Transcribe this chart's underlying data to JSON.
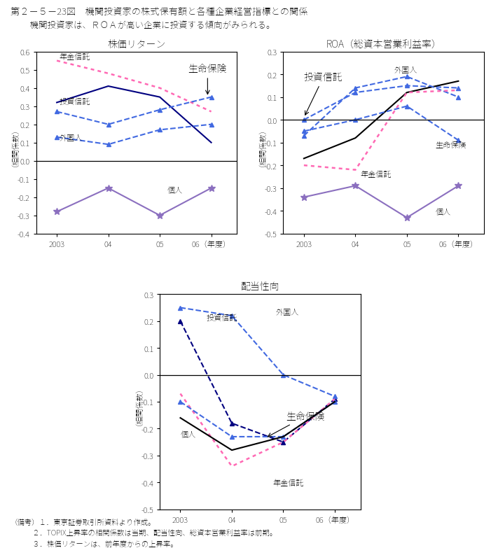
{
  "title": "第２－５－23図　機関投資家の株式保有額と各種企業経営指標との関係",
  "subtitle": "　機関投資家は、ＲＯＡが高い企業に投資する傾向がみられる。",
  "footnotes": [
    "（備考）１．東京証券取引所資料より作成。",
    "　　　２．TOPIX上昇率の相関係数は当期、配当性向、総資本営業利益率は前期。",
    "　　　３．株価リターンは、前年度からの上昇率。"
  ],
  "years": [
    0,
    1,
    2,
    3
  ],
  "xlabels": [
    "2003",
    "04",
    "05",
    "06（年度）"
  ],
  "chart1": {
    "title": "株価リターン",
    "ylabel": "（相関係数）",
    "ylim": [
      -0.4,
      0.6
    ],
    "yticks": [
      -0.4,
      -0.3,
      -0.2,
      -0.1,
      0.0,
      0.1,
      0.2,
      0.3,
      0.4,
      0.5,
      0.6
    ],
    "series": {
      "年金信託": [
        0.55,
        0.48,
        0.4,
        0.27
      ],
      "投資信託": [
        0.32,
        0.41,
        0.35,
        0.1
      ],
      "外国人": [
        0.13,
        0.09,
        0.17,
        0.2
      ],
      "生命保険": [
        0.27,
        0.2,
        0.28,
        0.35
      ],
      "個人": [
        -0.28,
        -0.15,
        -0.3,
        -0.15
      ]
    }
  },
  "chart2": {
    "title": "ROA（総資本営業利益率）",
    "ylabel": "（相関係数）",
    "ylim": [
      -0.5,
      0.3
    ],
    "yticks": [
      -0.5,
      -0.4,
      -0.3,
      -0.2,
      -0.1,
      0.0,
      0.1,
      0.2,
      0.3
    ],
    "series": {
      "投資信託": [
        0.0,
        0.12,
        0.15,
        0.14
      ],
      "外国人_black": [
        -0.17,
        -0.08,
        0.12,
        0.17
      ],
      "外国人": [
        -0.07,
        0.14,
        0.19,
        0.1
      ],
      "年金信託": [
        -0.2,
        -0.22,
        0.12,
        0.13
      ],
      "生命保険": [
        -0.05,
        0.0,
        0.06,
        -0.09
      ],
      "個人": [
        -0.34,
        -0.29,
        -0.43,
        -0.29
      ]
    }
  },
  "chart3": {
    "title": "配当性向",
    "ylabel": "（相関係数）",
    "ylim": [
      -0.5,
      0.3
    ],
    "yticks": [
      -0.5,
      -0.4,
      -0.3,
      -0.2,
      -0.1,
      0.0,
      0.1,
      0.2,
      0.3
    ],
    "series": {
      "投資信託": [
        0.2,
        -0.18,
        -0.25,
        -0.09
      ],
      "外国人": [
        0.25,
        0.22,
        0.0,
        -0.08
      ],
      "年金信託": [
        -0.07,
        -0.34,
        -0.25,
        -0.09
      ],
      "生命保険": [
        -0.1,
        -0.23,
        -0.23,
        -0.1
      ],
      "個人": [
        -0.16,
        -0.28,
        -0.23,
        -0.1
      ]
    }
  },
  "c_nenkin": "#FF69B4",
  "c_toshi": "#000080",
  "c_gaikoku": "#4169E1",
  "c_seimei": "#4169E1",
  "c_kojin": "#8B6FBF",
  "c_black": "#000000"
}
